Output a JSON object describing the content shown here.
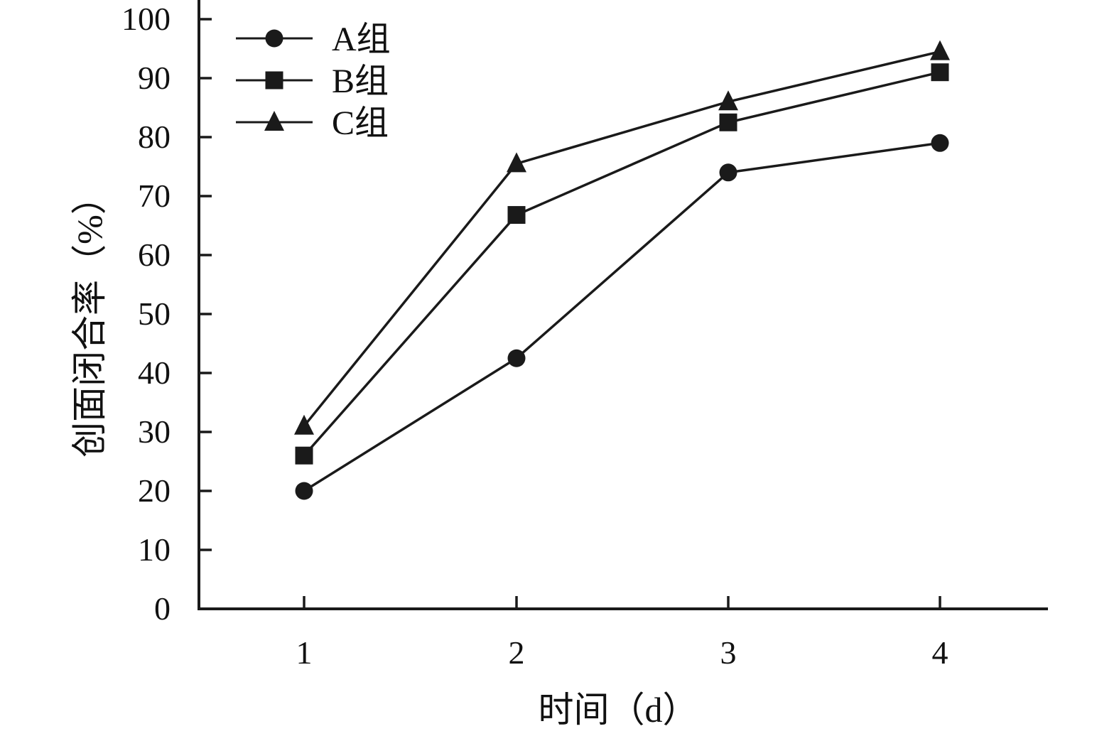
{
  "chart_data": {
    "type": "line",
    "title": "",
    "xlabel": "时间（d）",
    "ylabel": "创面闭合率（%）",
    "categories": [
      "1",
      "2",
      "3",
      "4"
    ],
    "ylim": [
      0,
      100
    ],
    "yticks": [
      "0",
      "10",
      "20",
      "30",
      "40",
      "50",
      "60",
      "70",
      "80",
      "90",
      "100"
    ],
    "grid": false,
    "legend_position": "top-left",
    "series": [
      {
        "name": "A组",
        "marker": "circle",
        "values": [
          20,
          42.5,
          74,
          79
        ]
      },
      {
        "name": "B组",
        "marker": "square",
        "values": [
          26,
          66.8,
          82.5,
          91
        ]
      },
      {
        "name": "C组",
        "marker": "triangle",
        "values": [
          31,
          75.5,
          86,
          94.5
        ]
      }
    ],
    "colors": {
      "line": "#1a1a1a",
      "marker": "#1a1a1a"
    }
  }
}
